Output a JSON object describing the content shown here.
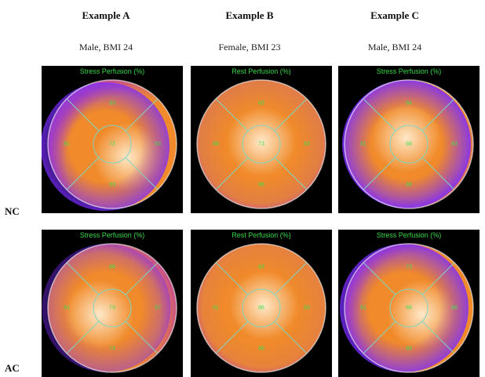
{
  "columns": [
    {
      "title": "Example A",
      "subtitle": "Male, BMI 24"
    },
    {
      "title": "Example B",
      "subtitle": "Female, BMI 23"
    },
    {
      "title": "Example C",
      "subtitle": "Male, BMI 24"
    }
  ],
  "rows": [
    {
      "label": "NC",
      "panels": [
        {
          "title": "Stress Perfusion (%)",
          "segments": {
            "top": "83",
            "left": "81",
            "right": "83",
            "bottom": "93",
            "center": "73"
          }
        },
        {
          "title": "Rest Perfusion (%)",
          "segments": {
            "top": "83",
            "left": "88",
            "right": "83",
            "bottom": "88",
            "center": "73"
          }
        },
        {
          "title": "Stress Perfusion (%)",
          "segments": {
            "top": "84",
            "left": "81",
            "right": "83",
            "bottom": "88",
            "center": "68"
          }
        }
      ]
    },
    {
      "label": "AC",
      "panels": [
        {
          "title": "Stress Perfusion (%)",
          "segments": {
            "top": "88",
            "left": "81",
            "right": "87",
            "bottom": "73",
            "center": "73"
          }
        },
        {
          "title": "Rest Perfusion (%)",
          "segments": {
            "top": "83",
            "left": "81",
            "right": "83",
            "bottom": "88",
            "center": "88"
          }
        },
        {
          "title": "Stress Perfusion (%)",
          "segments": {
            "top": "73",
            "left": "81",
            "right": "88",
            "bottom": "88",
            "center": "68"
          }
        }
      ]
    }
  ],
  "colors": {
    "background": "#ffffff",
    "panel_bg": "#000000",
    "label_green": "#39d84a",
    "hot": "#f08a2a",
    "warm": "#ffe9c8",
    "cold": "#7a2cff",
    "seg_line": "#7fd6c0"
  }
}
